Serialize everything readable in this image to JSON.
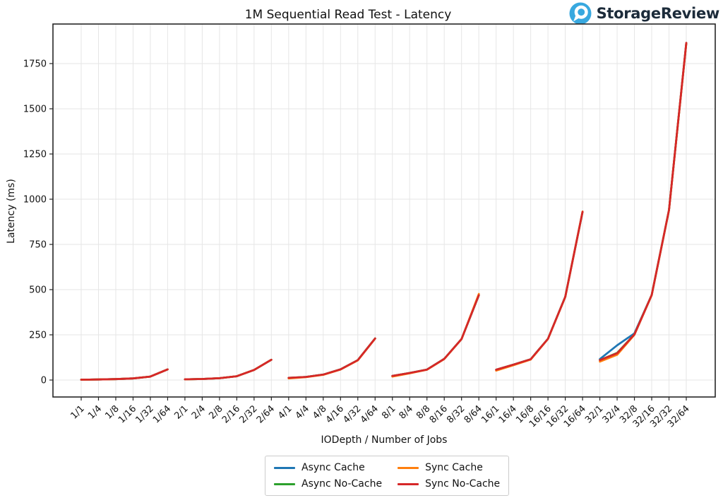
{
  "header": {
    "brand": "StorageReview",
    "brand_icon": "storagereview-circle-logo",
    "brand_icon_color": "#38a8df",
    "brand_text_color": "#1c2b3a"
  },
  "chart_data": {
    "type": "line",
    "title": "1M Sequential Read Test - Latency",
    "xlabel": "IODepth / Number of Jobs",
    "ylabel": "Latency (ms)",
    "grid": true,
    "legend_position": "bottom-center",
    "ylim": [
      0,
      1750
    ],
    "yticks": [
      0,
      250,
      500,
      750,
      1000,
      1250,
      1500,
      1750
    ],
    "group_size": 6,
    "categories": [
      "1/1",
      "1/4",
      "1/8",
      "1/16",
      "1/32",
      "1/64",
      "2/1",
      "2/4",
      "2/8",
      "2/16",
      "2/32",
      "2/64",
      "4/1",
      "4/4",
      "4/8",
      "4/16",
      "4/32",
      "4/64",
      "8/1",
      "8/4",
      "8/8",
      "8/16",
      "8/32",
      "8/64",
      "16/1",
      "16/4",
      "16/8",
      "16/16",
      "16/32",
      "16/64",
      "32/1",
      "32/4",
      "32/8",
      "32/16",
      "32/32",
      "32/64"
    ],
    "series": [
      {
        "name": "Async Cache",
        "color": "#1f77b4",
        "values": [
          2,
          3,
          5,
          9,
          19,
          59,
          4,
          6,
          10,
          21,
          56,
          112,
          11,
          17,
          30,
          59,
          110,
          230,
          22,
          39,
          58,
          117,
          227,
          469,
          56,
          85,
          115,
          228,
          460,
          930,
          116,
          192,
          258,
          470,
          940,
          1862
        ]
      },
      {
        "name": "Async No-Cache",
        "color": "#2ca02c",
        "values": [
          2,
          3,
          5,
          9,
          19,
          59,
          4,
          6,
          10,
          21,
          56,
          112,
          12,
          17,
          30,
          59,
          110,
          230,
          23,
          39,
          58,
          117,
          227,
          469,
          57,
          85,
          115,
          228,
          460,
          930,
          110,
          150,
          252,
          470,
          940,
          1864
        ]
      },
      {
        "name": "Sync Cache",
        "color": "#ff7f0e",
        "values": [
          2,
          3,
          5,
          9,
          19,
          59,
          4,
          6,
          10,
          21,
          56,
          112,
          9,
          16,
          29,
          58,
          109,
          229,
          19,
          37,
          57,
          116,
          226,
          476,
          52,
          82,
          113,
          227,
          459,
          932,
          102,
          140,
          250,
          469,
          939,
          1860
        ]
      },
      {
        "name": "Sync No-Cache",
        "color": "#d62728",
        "values": [
          2,
          3,
          5,
          9,
          19,
          59,
          4,
          6,
          10,
          21,
          56,
          112,
          12,
          17,
          30,
          59,
          110,
          230,
          23,
          39,
          58,
          117,
          227,
          469,
          57,
          85,
          115,
          228,
          460,
          930,
          110,
          148,
          252,
          470,
          940,
          1865
        ]
      }
    ]
  }
}
